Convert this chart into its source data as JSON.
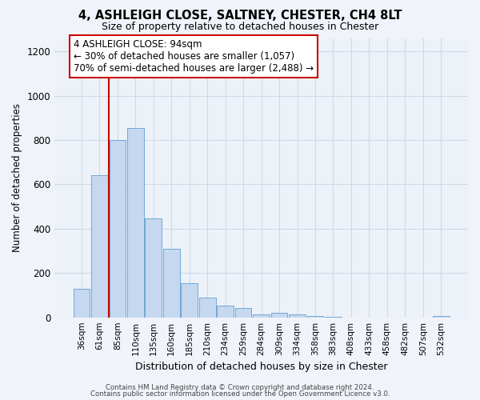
{
  "title": "4, ASHLEIGH CLOSE, SALTNEY, CHESTER, CH4 8LT",
  "subtitle": "Size of property relative to detached houses in Chester",
  "xlabel": "Distribution of detached houses by size in Chester",
  "ylabel": "Number of detached properties",
  "bar_labels": [
    "36sqm",
    "61sqm",
    "85sqm",
    "110sqm",
    "135sqm",
    "160sqm",
    "185sqm",
    "210sqm",
    "234sqm",
    "259sqm",
    "284sqm",
    "309sqm",
    "334sqm",
    "358sqm",
    "383sqm",
    "408sqm",
    "433sqm",
    "458sqm",
    "482sqm",
    "507sqm",
    "532sqm"
  ],
  "bar_heights": [
    130,
    640,
    800,
    855,
    445,
    310,
    155,
    90,
    52,
    42,
    15,
    22,
    12,
    5,
    2,
    0,
    0,
    0,
    0,
    0,
    5
  ],
  "bar_color": "#c5d8f0",
  "bar_edge_color": "#6fa8d6",
  "grid_color": "#ccd9e8",
  "background_color": "#edf2f9",
  "vline_color": "#cc0000",
  "annotation_title": "4 ASHLEIGH CLOSE: 94sqm",
  "annotation_line1": "← 30% of detached houses are smaller (1,057)",
  "annotation_line2": "70% of semi-detached houses are larger (2,488) →",
  "annotation_box_facecolor": "#ffffff",
  "annotation_box_edgecolor": "#cc0000",
  "ylim": [
    0,
    1260
  ],
  "yticks": [
    0,
    200,
    400,
    600,
    800,
    1000,
    1200
  ],
  "footer_line1": "Contains HM Land Registry data © Crown copyright and database right 2024.",
  "footer_line2": "Contains public sector information licensed under the Open Government Licence v3.0.",
  "fig_bg": "#f0f4fa"
}
